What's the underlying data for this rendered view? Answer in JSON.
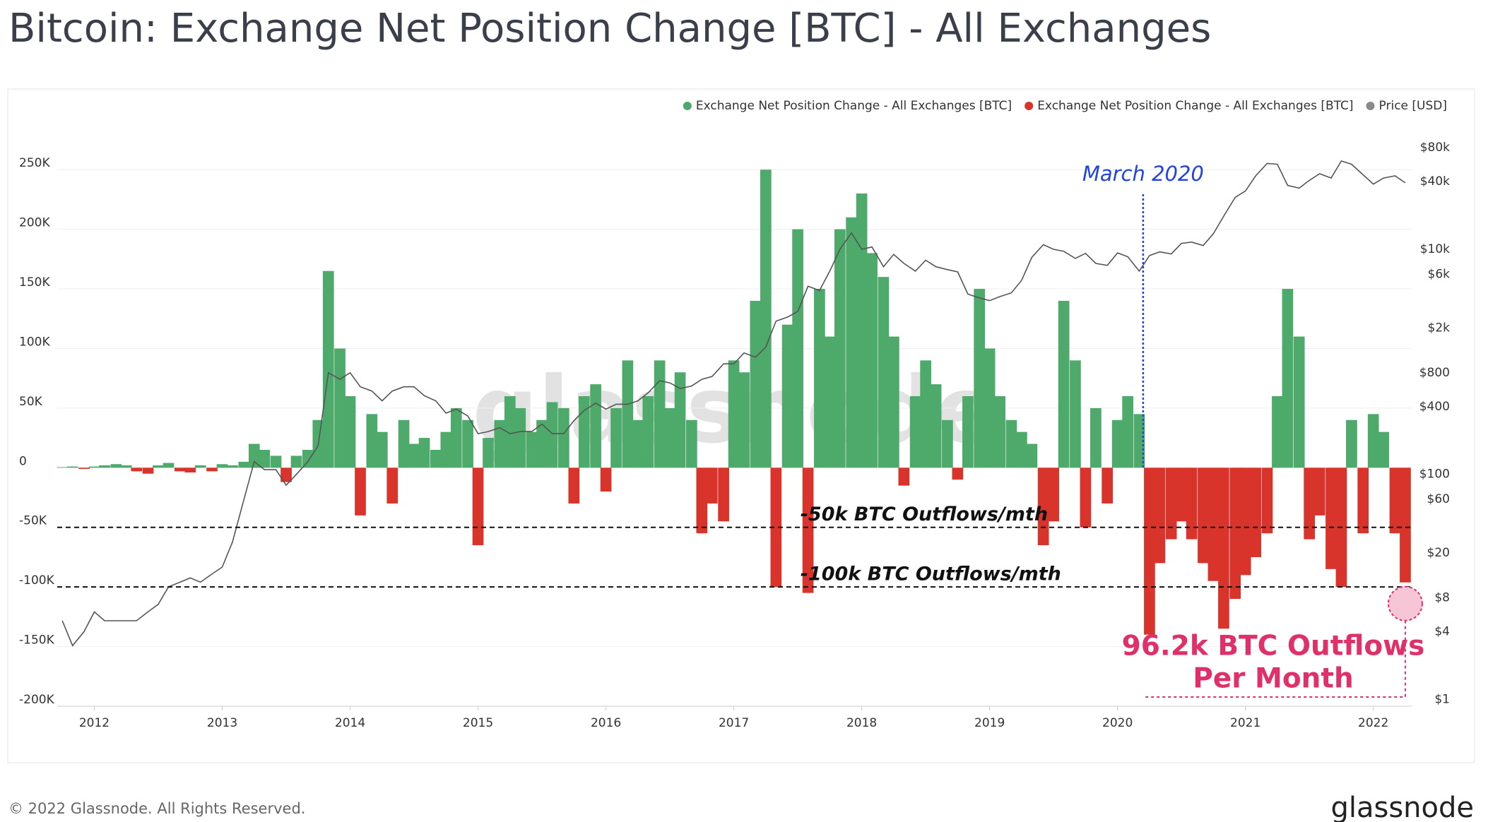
{
  "chart_data": {
    "type": "bar",
    "title": "Bitcoin: Exchange Net Position Change [BTC] - All Exchanges",
    "watermark": "glassnode",
    "footer": "© 2022 Glassnode. All Rights Reserved.",
    "brand": "glassnode",
    "legend_position": "top-right",
    "grid": true,
    "x": [
      2011.75,
      2011.83,
      2011.92,
      2012.0,
      2012.08,
      2012.17,
      2012.25,
      2012.33,
      2012.42,
      2012.5,
      2012.58,
      2012.67,
      2012.75,
      2012.83,
      2012.92,
      2013.0,
      2013.08,
      2013.17,
      2013.25,
      2013.33,
      2013.42,
      2013.5,
      2013.58,
      2013.67,
      2013.75,
      2013.83,
      2013.92,
      2014.0,
      2014.08,
      2014.17,
      2014.25,
      2014.33,
      2014.42,
      2014.5,
      2014.58,
      2014.67,
      2014.75,
      2014.83,
      2014.92,
      2015.0,
      2015.08,
      2015.17,
      2015.25,
      2015.33,
      2015.42,
      2015.5,
      2015.58,
      2015.67,
      2015.75,
      2015.83,
      2015.92,
      2016.0,
      2016.08,
      2016.17,
      2016.25,
      2016.33,
      2016.42,
      2016.5,
      2016.58,
      2016.67,
      2016.75,
      2016.83,
      2016.92,
      2017.0,
      2017.08,
      2017.17,
      2017.25,
      2017.33,
      2017.42,
      2017.5,
      2017.58,
      2017.67,
      2017.75,
      2017.83,
      2017.92,
      2018.0,
      2018.08,
      2018.17,
      2018.25,
      2018.33,
      2018.42,
      2018.5,
      2018.58,
      2018.67,
      2018.75,
      2018.83,
      2018.92,
      2019.0,
      2019.08,
      2019.17,
      2019.25,
      2019.33,
      2019.42,
      2019.5,
      2019.58,
      2019.67,
      2019.75,
      2019.83,
      2019.92,
      2020.0,
      2020.08,
      2020.17,
      2020.25,
      2020.33,
      2020.42,
      2020.5,
      2020.58,
      2020.67,
      2020.75,
      2020.83,
      2020.92,
      2021.0,
      2021.08,
      2021.17,
      2021.25,
      2021.33,
      2021.42,
      2021.5,
      2021.58,
      2021.67,
      2021.75,
      2021.83,
      2021.92,
      2022.0,
      2022.08,
      2022.17,
      2022.25
    ],
    "series": [
      {
        "name": "Exchange Net Position Change - All Exchanges [BTC]",
        "color": "#4daa6a",
        "values": [
          500,
          1000,
          null,
          1000,
          2000,
          3000,
          2000,
          null,
          null,
          2000,
          4000,
          null,
          null,
          2000,
          null,
          3000,
          2000,
          5000,
          20000,
          15000,
          10000,
          null,
          10000,
          15000,
          40000,
          165000,
          100000,
          60000,
          null,
          45000,
          30000,
          null,
          40000,
          20000,
          25000,
          15000,
          30000,
          50000,
          40000,
          null,
          25000,
          40000,
          60000,
          50000,
          30000,
          40000,
          55000,
          50000,
          null,
          60000,
          70000,
          null,
          50000,
          90000,
          40000,
          60000,
          90000,
          50000,
          80000,
          40000,
          null,
          null,
          null,
          90000,
          80000,
          140000,
          250000,
          null,
          120000,
          200000,
          null,
          150000,
          110000,
          200000,
          210000,
          230000,
          180000,
          160000,
          110000,
          null,
          60000,
          90000,
          70000,
          40000,
          null,
          60000,
          150000,
          100000,
          60000,
          40000,
          30000,
          20000,
          null,
          null,
          140000,
          90000,
          null,
          50000,
          null,
          40000,
          60000,
          45000,
          null,
          null,
          null,
          null,
          null,
          null,
          null,
          null,
          null,
          null,
          null,
          null,
          60000,
          150000,
          110000,
          null,
          null,
          null,
          null,
          40000,
          null,
          45000,
          30000,
          null,
          null
        ]
      },
      {
        "name": "Exchange Net Position Change - All Exchanges [BTC]",
        "color": "#d9342b",
        "values": [
          null,
          null,
          -1000,
          null,
          null,
          null,
          null,
          -3000,
          -5000,
          null,
          null,
          -3000,
          -4000,
          null,
          -3000,
          null,
          null,
          null,
          null,
          null,
          null,
          -12000,
          null,
          null,
          null,
          null,
          null,
          null,
          -40000,
          null,
          null,
          -30000,
          null,
          null,
          null,
          null,
          null,
          null,
          null,
          -65000,
          null,
          null,
          null,
          null,
          null,
          null,
          null,
          null,
          -30000,
          null,
          null,
          -20000,
          null,
          null,
          null,
          null,
          null,
          null,
          null,
          null,
          -55000,
          -30000,
          -45000,
          null,
          null,
          null,
          null,
          -100000,
          null,
          null,
          -105000,
          null,
          null,
          null,
          null,
          null,
          null,
          null,
          null,
          -15000,
          null,
          null,
          null,
          null,
          -10000,
          null,
          null,
          null,
          null,
          null,
          null,
          null,
          -65000,
          -45000,
          null,
          null,
          -50000,
          null,
          -30000,
          null,
          null,
          null,
          -140000,
          -80000,
          -60000,
          -45000,
          -60000,
          -80000,
          -95000,
          -135000,
          -110000,
          -90000,
          -75000,
          -55000,
          null,
          null,
          null,
          -60000,
          -40000,
          -85000,
          -100000,
          null,
          -55000,
          null,
          null,
          -55000,
          -96200
        ]
      },
      {
        "name": "Price [USD]",
        "color": "#8a8a8a",
        "axis": "y2",
        "values": [
          5,
          3,
          4,
          6,
          5,
          5,
          5,
          5,
          6,
          7,
          10,
          11,
          12,
          11,
          13,
          15,
          25,
          60,
          130,
          110,
          110,
          80,
          100,
          130,
          180,
          800,
          700,
          800,
          600,
          550,
          450,
          550,
          600,
          600,
          500,
          450,
          350,
          380,
          330,
          230,
          240,
          260,
          230,
          240,
          240,
          280,
          230,
          230,
          300,
          370,
          430,
          380,
          420,
          420,
          450,
          530,
          680,
          650,
          580,
          610,
          700,
          740,
          960,
          960,
          1200,
          1100,
          1350,
          2300,
          2500,
          2800,
          4700,
          4300,
          6400,
          10000,
          14000,
          10000,
          10500,
          7000,
          9000,
          7500,
          6400,
          8000,
          7000,
          6600,
          6300,
          4000,
          3700,
          3500,
          3800,
          4100,
          5300,
          8500,
          11000,
          10000,
          9600,
          8300,
          9200,
          7500,
          7200,
          9300,
          8600,
          6400,
          8800,
          9500,
          9100,
          11300,
          11600,
          10800,
          13800,
          19700,
          29000,
          33000,
          45000,
          58000,
          57000,
          37000,
          35000,
          41000,
          47000,
          43000,
          61000,
          57000,
          46000,
          38000,
          43000,
          45000,
          39000
        ]
      }
    ],
    "xlim": [
      2011.71,
      2022.3
    ],
    "xticks": [
      2012,
      2013,
      2014,
      2015,
      2016,
      2017,
      2018,
      2019,
      2020,
      2021,
      2022
    ],
    "ylim": [
      -200000,
      275000
    ],
    "yticks": [
      {
        "value": -200000,
        "label": "-200K"
      },
      {
        "value": -150000,
        "label": "-150K"
      },
      {
        "value": -100000,
        "label": "-100K"
      },
      {
        "value": -50000,
        "label": "-50K"
      },
      0,
      {
        "value": 50000,
        "label": "50K"
      },
      {
        "value": 100000,
        "label": "100K"
      },
      {
        "value": 150000,
        "label": "150K"
      },
      {
        "value": 200000,
        "label": "200K"
      },
      {
        "value": 250000,
        "label": "250K"
      }
    ],
    "y2_log": true,
    "y2lim": [
      0.87,
      94000
    ],
    "y2ticks": [
      {
        "value": 1,
        "label": "$1"
      },
      {
        "value": 4,
        "label": "$4"
      },
      {
        "value": 8,
        "label": "$8"
      },
      {
        "value": 20,
        "label": "$20"
      },
      {
        "value": 60,
        "label": "$60"
      },
      {
        "value": 100,
        "label": "$100"
      },
      {
        "value": 400,
        "label": "$400"
      },
      {
        "value": 800,
        "label": "$800"
      },
      {
        "value": 2000,
        "label": "$2k"
      },
      {
        "value": 6000,
        "label": "$6k"
      },
      {
        "value": 10000,
        "label": "$10k"
      },
      {
        "value": 40000,
        "label": "$40k"
      },
      {
        "value": 80000,
        "label": "$80k"
      }
    ],
    "reference_lines": [
      {
        "value": -50000,
        "label": "-50k BTC Outflows/mth"
      },
      {
        "value": -100000,
        "label": "-100k BTC Outflows/mth"
      }
    ],
    "event": {
      "x": 2020.2,
      "label": "March 2020"
    },
    "callout": [
      "96.2k BTC Outflows",
      "Per Month"
    ]
  }
}
